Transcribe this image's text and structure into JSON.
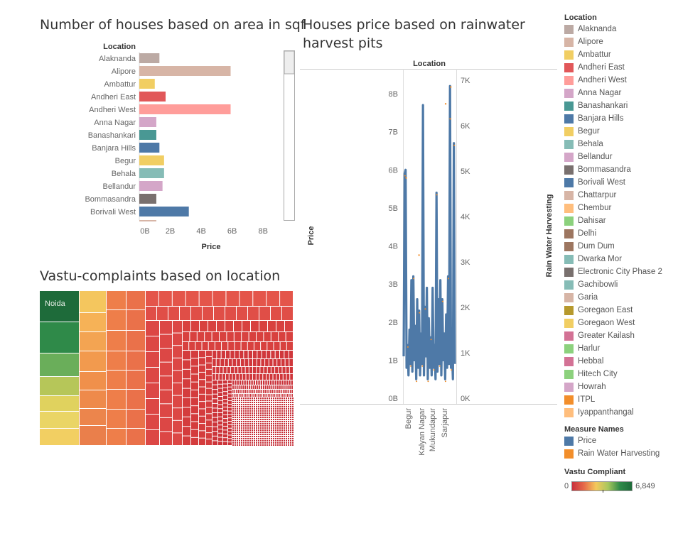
{
  "titles": {
    "bar": "Number of houses based on area in sqf",
    "line": "Houses price based on rainwater harvest pits",
    "treemap": "Vastu-complaints based on location"
  },
  "chart_data": [
    {
      "type": "bar",
      "orientation": "horizontal",
      "title": "Number of houses based on area in sqf",
      "ylabel": "Location",
      "xlabel": "Price",
      "x_ticks": [
        "0B",
        "2B",
        "4B",
        "6B",
        "8B"
      ],
      "xlim": [
        0,
        9
      ],
      "categories": [
        "Alaknanda",
        "Alipore",
        "Ambattur",
        "Andheri East",
        "Andheri West",
        "Anna Nagar",
        "Banashankari",
        "Banjara Hills",
        "Begur",
        "Behala",
        "Bellandur",
        "Bommasandra",
        "Borivali West"
      ],
      "values": [
        1.3,
        5.9,
        1.0,
        1.7,
        5.9,
        1.1,
        1.1,
        1.3,
        1.6,
        1.6,
        1.5,
        1.1,
        3.2
      ],
      "colors": [
        "#bcaaa4",
        "#d7b5a6",
        "#f1ce63",
        "#e15759",
        "#ff9d9a",
        "#d4a6c8",
        "#499894",
        "#4e79a7",
        "#f1ce63",
        "#86bcb6",
        "#d4a6c8",
        "#79706e",
        "#4e79a7"
      ],
      "scrollbar": true
    },
    {
      "type": "line",
      "title": "Houses price based on rainwater harvest pits",
      "header": "Location",
      "ylabel": "Price",
      "ylabel_right": "Rain Water Harvesting",
      "ylim": [
        0,
        8.8
      ],
      "y_ticks": [
        "0B",
        "1B",
        "2B",
        "3B",
        "4B",
        "5B",
        "6B",
        "7B",
        "8B"
      ],
      "ylim_right": [
        0,
        7200
      ],
      "y_ticks_right": [
        "0K",
        "1K",
        "2K",
        "3K",
        "4K",
        "5K",
        "6K",
        "7K"
      ],
      "x_ticks": [
        "Begur",
        "Kalyan Nagar",
        "Mukundapur",
        "Sarjapur"
      ],
      "series": [
        {
          "name": "Price",
          "color": "#4e79a7",
          "values": [
            1.1,
            5.9,
            6.0,
            0.8,
            1.4,
            0.6,
            1.8,
            0.9,
            3.1,
            0.7,
            3.2,
            1.0,
            1.9,
            0.5,
            2.6,
            0.8,
            2.3,
            0.6,
            1.7,
            0.9,
            7.7,
            0.6,
            2.4,
            1.1,
            2.9,
            0.5,
            2.1,
            0.8,
            1.6,
            0.6,
            2.9,
            0.8,
            1.4,
            0.5,
            5.4,
            0.7,
            2.6,
            0.9,
            3.1,
            0.6,
            2.6,
            1.0,
            1.7,
            0.5,
            2.2,
            0.8,
            3.2,
            0.9,
            8.2,
            0.8,
            1.3,
            0.5,
            6.7,
            0.9
          ]
        },
        {
          "name": "Rain Water Harvesting",
          "color": "#f28e2b",
          "points": [
            [
              0.92,
              6850
            ],
            [
              0.91,
              6150
            ],
            [
              0.82,
              6480
            ],
            [
              0.3,
              3150
            ],
            [
              0.05,
              4850
            ]
          ]
        }
      ]
    },
    {
      "type": "heatmap",
      "subtype": "treemap",
      "title": "Vastu-complaints based on location",
      "labels": [
        "Noida"
      ],
      "color_measure": "Vastu Compliant",
      "color_range": [
        0,
        6849
      ]
    }
  ],
  "legend": {
    "location_title": "Location",
    "locations": [
      {
        "name": "Alaknanda",
        "color": "#bcaaa4"
      },
      {
        "name": "Alipore",
        "color": "#d7b5a6"
      },
      {
        "name": "Ambattur",
        "color": "#f1ce63"
      },
      {
        "name": "Andheri East",
        "color": "#e15759"
      },
      {
        "name": "Andheri West",
        "color": "#ff9d9a"
      },
      {
        "name": "Anna Nagar",
        "color": "#d4a6c8"
      },
      {
        "name": "Banashankari",
        "color": "#499894"
      },
      {
        "name": "Banjara Hills",
        "color": "#4e79a7"
      },
      {
        "name": "Begur",
        "color": "#f1ce63"
      },
      {
        "name": "Behala",
        "color": "#86bcb6"
      },
      {
        "name": "Bellandur",
        "color": "#d4a6c8"
      },
      {
        "name": "Bommasandra",
        "color": "#79706e"
      },
      {
        "name": "Borivali West",
        "color": "#4e79a7"
      },
      {
        "name": "Chattarpur",
        "color": "#d7b5a6"
      },
      {
        "name": "Chembur",
        "color": "#ffbe7d"
      },
      {
        "name": "Dahisar",
        "color": "#8cd17d"
      },
      {
        "name": "Delhi",
        "color": "#9d7660"
      },
      {
        "name": "Dum Dum",
        "color": "#9d7660"
      },
      {
        "name": "Dwarka Mor",
        "color": "#86bcb6"
      },
      {
        "name": "Electronic City Phase 2",
        "color": "#79706e"
      },
      {
        "name": "Gachibowli",
        "color": "#86bcb6"
      },
      {
        "name": "Garia",
        "color": "#d7b5a6"
      },
      {
        "name": "Goregaon East",
        "color": "#b6992d"
      },
      {
        "name": "Goregaon West",
        "color": "#f1ce63"
      },
      {
        "name": "Greater Kailash",
        "color": "#d37295"
      },
      {
        "name": "Harlur",
        "color": "#8cd17d"
      },
      {
        "name": "Hebbal",
        "color": "#d37295"
      },
      {
        "name": "Hitech City",
        "color": "#8cd17d"
      },
      {
        "name": "Howrah",
        "color": "#d4a6c8"
      },
      {
        "name": "ITPL",
        "color": "#f28e2b"
      },
      {
        "name": "Iyappanthangal",
        "color": "#ffbe7d"
      }
    ],
    "measure_title": "Measure Names",
    "measures": [
      {
        "name": "Price",
        "color": "#4e79a7"
      },
      {
        "name": "Rain Water Harvesting",
        "color": "#f28e2b"
      }
    ],
    "vastu_title": "Vastu Compliant",
    "vastu_min": "0",
    "vastu_max": "6,849"
  }
}
